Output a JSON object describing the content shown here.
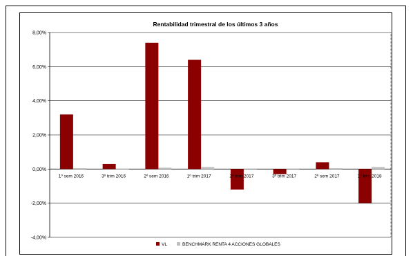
{
  "chart_data": {
    "type": "bar",
    "title": "Rentabilidad trimestral de los últimos 3 años",
    "categories": [
      "1º sem 2016",
      "3º trim 2016",
      "2º sem 2016",
      "1º trim 2017",
      "2º trim 2017",
      "3º trim 2017",
      "2º sem 2017",
      "1º trim 2018"
    ],
    "series": [
      {
        "name": "VL",
        "color": "#8b0000",
        "values": [
          3.2,
          0.3,
          7.4,
          6.4,
          -1.2,
          -0.3,
          0.4,
          -2.0
        ]
      },
      {
        "name": "BENCHMARK RENTA 4 ACCIONES GLOBALES",
        "color": "#c0c0c0",
        "values": [
          0.05,
          0.03,
          0.08,
          0.12,
          -0.02,
          -0.02,
          0.05,
          0.12
        ]
      }
    ],
    "ylim": [
      -4,
      8
    ],
    "yticks": [
      "8,00%",
      "6,00%",
      "4,00%",
      "2,00%",
      "0,00%",
      "-2,00%",
      "-4,00%"
    ],
    "ytick_values": [
      8,
      6,
      4,
      2,
      0,
      -2,
      -4
    ],
    "grid": true,
    "legend": "bottom"
  }
}
